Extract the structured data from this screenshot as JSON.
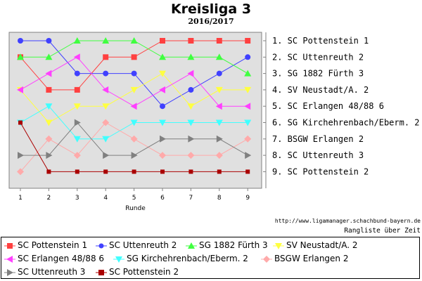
{
  "chart_data": {
    "type": "line",
    "title": "Kreisliga 3",
    "subtitle": "2016/2017",
    "xlabel": "Runde",
    "ylabel": "",
    "x": [
      1,
      2,
      3,
      4,
      5,
      6,
      7,
      8,
      9
    ],
    "ylim": [
      1,
      9
    ],
    "y_inverted": true,
    "grid": false,
    "legend_position": "bottom",
    "final_ranking": [
      "1. SC Pottenstein 1",
      "2. SC Uttenreuth 2",
      "3. SG 1882 Fürth 3",
      "4. SV Neustadt/A. 2",
      "5. SC Erlangen 48/88 6",
      "6. SG Kirchehrenbach/Eberm. 2",
      "7. BSGW Erlangen 2",
      "8. SC Uttenreuth 3",
      "9. SC Pottenstein 2"
    ],
    "series": [
      {
        "name": "SC Pottenstein 1",
        "color": "#ff4040",
        "marker": "square",
        "values": [
          2,
          4,
          4,
          2,
          2,
          1,
          1,
          1,
          1
        ]
      },
      {
        "name": "SC Uttenreuth 2",
        "color": "#4040ff",
        "marker": "circle",
        "values": [
          1,
          1,
          3,
          3,
          3,
          5,
          4,
          3,
          2
        ]
      },
      {
        "name": "SG 1882 Fürth 3",
        "color": "#40ff40",
        "marker": "triangle-up",
        "values": [
          2,
          2,
          1,
          1,
          1,
          2,
          2,
          2,
          3
        ]
      },
      {
        "name": "SV Neustadt/A. 2",
        "color": "#ffff40",
        "marker": "triangle-down",
        "values": [
          4,
          6,
          5,
          5,
          4,
          3,
          5,
          4,
          4
        ]
      },
      {
        "name": "SC Erlangen 48/88 6",
        "color": "#ff40ff",
        "marker": "triangle-left",
        "values": [
          4,
          3,
          2,
          4,
          5,
          4,
          3,
          5,
          5
        ]
      },
      {
        "name": "SG Kirchehrenbach/Eberm. 2",
        "color": "#40ffff",
        "marker": "triangle-down",
        "values": [
          6,
          5,
          7,
          7,
          6,
          6,
          6,
          6,
          6
        ]
      },
      {
        "name": "BSGW Erlangen 2",
        "color": "#ffaaaa",
        "marker": "diamond",
        "values": [
          9,
          7,
          8,
          6,
          7,
          8,
          8,
          8,
          7
        ]
      },
      {
        "name": "SC Uttenreuth 3",
        "color": "#808080",
        "marker": "triangle-right",
        "values": [
          8,
          8,
          6,
          8,
          8,
          7,
          7,
          7,
          8
        ]
      },
      {
        "name": "SC Pottenstein 2",
        "color": "#aa0000",
        "marker": "square-small",
        "values": [
          6,
          9,
          9,
          9,
          9,
          9,
          9,
          9,
          9
        ]
      }
    ]
  },
  "credits": {
    "url": "http://www.ligamanager.schachbund-bayern.de",
    "subtitle": "Rangliste über Zeit"
  }
}
